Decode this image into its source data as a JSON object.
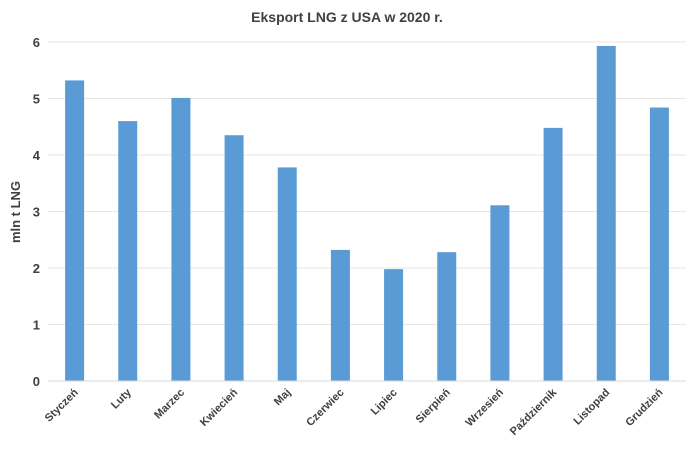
{
  "chart_data": {
    "type": "bar",
    "title": "Eksport LNG z USA w 2020 r.",
    "xlabel": "",
    "ylabel": "mln t LNG",
    "categories": [
      "Styczeń",
      "Luty",
      "Marzec",
      "Kwiecień",
      "Maj",
      "Czerwiec",
      "Lipiec",
      "Sierpień",
      "Wrzesień",
      "Październik",
      "Listopad",
      "Grudzień"
    ],
    "values": [
      5.32,
      4.6,
      5.01,
      4.35,
      3.78,
      2.32,
      1.98,
      2.28,
      3.11,
      4.48,
      5.93,
      4.84
    ],
    "ylim": [
      0,
      6
    ],
    "yticks": [
      0,
      1,
      2,
      3,
      4,
      5,
      6
    ],
    "grid": true,
    "bar_color": "#5b9bd5"
  }
}
